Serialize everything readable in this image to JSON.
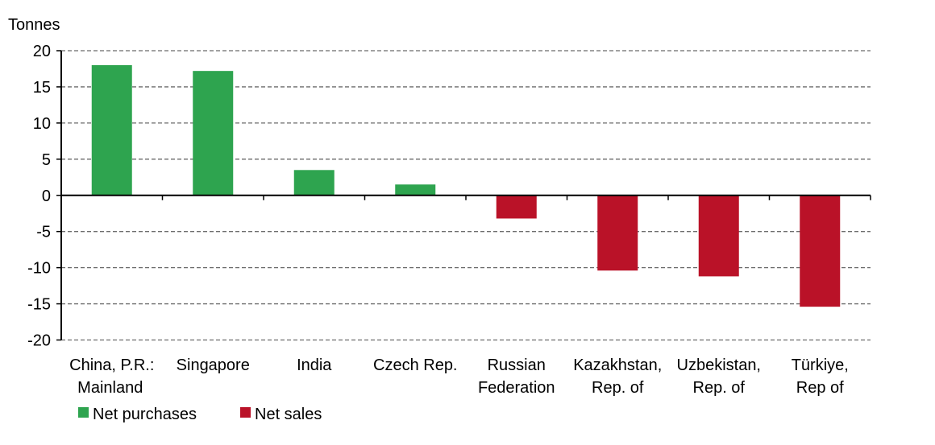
{
  "chart_data": {
    "type": "bar",
    "ylabel": "Tonnes",
    "ylim": [
      -20,
      20
    ],
    "yticks": [
      20,
      15,
      10,
      5,
      0,
      -5,
      -10,
      -15,
      -20
    ],
    "grid": true,
    "categories": [
      [
        "China, P.R.:",
        "Mainland"
      ],
      [
        "Singapore"
      ],
      [
        "India"
      ],
      [
        "Czech Rep."
      ],
      [
        "Russian",
        "Federation"
      ],
      [
        "Kazakhstan,",
        "Rep. of"
      ],
      [
        "Uzbekistan,",
        "Rep. of"
      ],
      [
        "Türkiye,",
        "Rep of"
      ]
    ],
    "values": [
      18.0,
      17.2,
      3.5,
      1.5,
      -3.2,
      -10.4,
      -11.2,
      -15.4
    ],
    "legend_placement": "bottom-left",
    "legend": [
      {
        "name": "Net purchases",
        "color": "#2ea44f"
      },
      {
        "name": "Net sales",
        "color": "#ba1228"
      }
    ]
  }
}
